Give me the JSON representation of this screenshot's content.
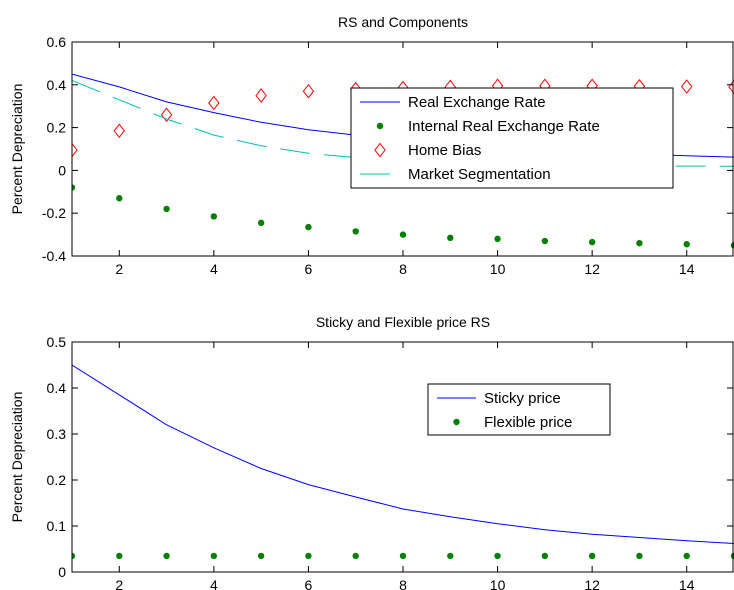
{
  "chart_data": [
    {
      "type": "line",
      "title": "RS and Components",
      "xlabel": "",
      "ylabel": "Percent Depreciation",
      "xlim": [
        1,
        15
      ],
      "ylim": [
        -0.4,
        0.6
      ],
      "xticks": [
        2,
        4,
        6,
        8,
        10,
        12,
        14
      ],
      "yticks": [
        -0.4,
        -0.2,
        0,
        0.2,
        0.4,
        0.6
      ],
      "ytick_labels": [
        "-0.4",
        "-0.2",
        "0",
        "0.2",
        "0.4",
        "0.6"
      ],
      "grid": false,
      "legend_position": "center-right",
      "x": [
        1,
        2,
        3,
        4,
        5,
        6,
        7,
        8,
        9,
        10,
        11,
        12,
        13,
        14,
        15
      ],
      "series": [
        {
          "name": "Real Exchange Rate",
          "style": "solid-line",
          "color": "#0000ff",
          "values": [
            0.45,
            0.39,
            0.32,
            0.27,
            0.225,
            0.19,
            0.165,
            0.14,
            0.12,
            0.108,
            0.095,
            0.083,
            0.075,
            0.068,
            0.062
          ]
        },
        {
          "name": "Internal Real Exchange Rate",
          "style": "dot-marker",
          "color": "#008000",
          "values": [
            -0.08,
            -0.13,
            -0.18,
            -0.215,
            -0.245,
            -0.265,
            -0.285,
            -0.3,
            -0.315,
            -0.32,
            -0.33,
            -0.335,
            -0.34,
            -0.345,
            -0.35
          ]
        },
        {
          "name": "Home Bias",
          "style": "diamond-marker",
          "color": "#ff0000",
          "values": [
            0.095,
            0.185,
            0.26,
            0.315,
            0.35,
            0.37,
            0.38,
            0.385,
            0.39,
            0.395,
            0.395,
            0.395,
            0.393,
            0.392,
            0.39
          ]
        },
        {
          "name": "Market Segmentation",
          "style": "dashed-line",
          "color": "#00bfbf",
          "values": [
            0.42,
            0.33,
            0.24,
            0.165,
            0.115,
            0.08,
            0.06,
            0.045,
            0.035,
            0.028,
            0.024,
            0.022,
            0.02,
            0.02,
            0.019
          ]
        }
      ]
    },
    {
      "type": "line",
      "title": "Sticky and Flexible price RS",
      "xlabel": "",
      "ylabel": "Percent Depreciation",
      "xlim": [
        1,
        15
      ],
      "ylim": [
        0,
        0.5
      ],
      "xticks": [
        2,
        4,
        6,
        8,
        10,
        12,
        14
      ],
      "yticks": [
        0,
        0.1,
        0.2,
        0.3,
        0.4,
        0.5
      ],
      "ytick_labels": [
        "0",
        "0.1",
        "0.2",
        "0.3",
        "0.4",
        "0.5"
      ],
      "grid": false,
      "legend_position": "center-right",
      "x": [
        1,
        2,
        3,
        4,
        5,
        6,
        7,
        8,
        9,
        10,
        11,
        12,
        13,
        14,
        15
      ],
      "series": [
        {
          "name": "Sticky price",
          "style": "solid-line",
          "color": "#0000ff",
          "values": [
            0.45,
            0.385,
            0.32,
            0.27,
            0.225,
            0.19,
            0.163,
            0.137,
            0.12,
            0.105,
            0.092,
            0.082,
            0.075,
            0.068,
            0.062
          ]
        },
        {
          "name": "Flexible price",
          "style": "dot-marker",
          "color": "#008000",
          "values": [
            0.035,
            0.035,
            0.035,
            0.035,
            0.035,
            0.035,
            0.035,
            0.035,
            0.035,
            0.035,
            0.035,
            0.035,
            0.035,
            0.035,
            0.035
          ]
        }
      ]
    }
  ]
}
